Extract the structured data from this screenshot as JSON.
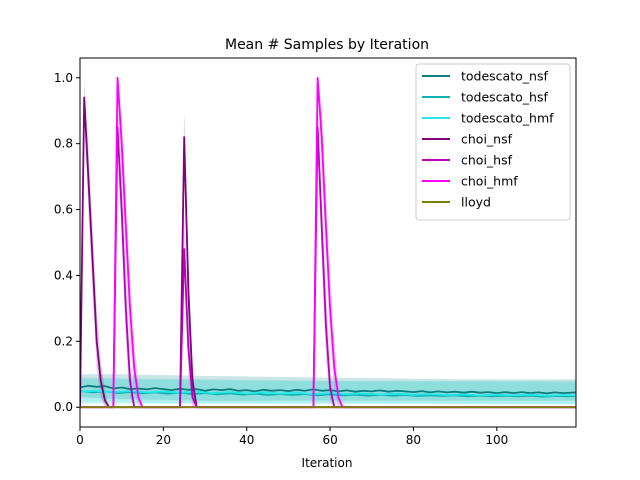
{
  "chart_data": {
    "type": "line",
    "title": "Mean # Samples by Iteration",
    "xlabel": "Iteration",
    "ylabel": "",
    "xlim": [
      0,
      119
    ],
    "ylim": [
      -0.06,
      1.06
    ],
    "xticks": [
      0,
      20,
      40,
      60,
      80,
      100
    ],
    "yticks": [
      0.0,
      0.2,
      0.4,
      0.6,
      0.8,
      1.0
    ],
    "xtick_labels": [
      "0",
      "20",
      "40",
      "60",
      "80",
      "100"
    ],
    "ytick_labels": [
      "0.0",
      "0.2",
      "0.4",
      "0.6",
      "0.8",
      "1.0"
    ],
    "grid": false,
    "legend_position": "top-right",
    "series": [
      {
        "name": "todescato_nsf",
        "color": "#0e7c7b",
        "band_color": "#2a9d9c",
        "band_opacity": 0.25,
        "points": [
          [
            0,
            0.06
          ],
          [
            2,
            0.065
          ],
          [
            4,
            0.062
          ],
          [
            6,
            0.064
          ],
          [
            8,
            0.057
          ],
          [
            10,
            0.06
          ],
          [
            12,
            0.055
          ],
          [
            14,
            0.057
          ],
          [
            16,
            0.054
          ],
          [
            18,
            0.058
          ],
          [
            20,
            0.055
          ],
          [
            22,
            0.052
          ],
          [
            24,
            0.056
          ],
          [
            26,
            0.053
          ],
          [
            28,
            0.055
          ],
          [
            30,
            0.05
          ],
          [
            32,
            0.054
          ],
          [
            34,
            0.052
          ],
          [
            36,
            0.055
          ],
          [
            38,
            0.05
          ],
          [
            40,
            0.052
          ],
          [
            42,
            0.048
          ],
          [
            44,
            0.053
          ],
          [
            46,
            0.05
          ],
          [
            48,
            0.052
          ],
          [
            50,
            0.049
          ],
          [
            52,
            0.053
          ],
          [
            54,
            0.05
          ],
          [
            56,
            0.054
          ],
          [
            58,
            0.05
          ],
          [
            60,
            0.052
          ],
          [
            62,
            0.048
          ],
          [
            64,
            0.051
          ],
          [
            66,
            0.047
          ],
          [
            68,
            0.05
          ],
          [
            70,
            0.048
          ],
          [
            72,
            0.051
          ],
          [
            74,
            0.047
          ],
          [
            76,
            0.05
          ],
          [
            78,
            0.048
          ],
          [
            80,
            0.046
          ],
          [
            82,
            0.049
          ],
          [
            84,
            0.045
          ],
          [
            86,
            0.048
          ],
          [
            88,
            0.045
          ],
          [
            90,
            0.047
          ],
          [
            92,
            0.044
          ],
          [
            94,
            0.047
          ],
          [
            96,
            0.044
          ],
          [
            98,
            0.046
          ],
          [
            100,
            0.043
          ],
          [
            102,
            0.046
          ],
          [
            104,
            0.043
          ],
          [
            106,
            0.046
          ],
          [
            108,
            0.043
          ],
          [
            110,
            0.045
          ],
          [
            112,
            0.042
          ],
          [
            114,
            0.045
          ],
          [
            116,
            0.043
          ],
          [
            119,
            0.045
          ]
        ],
        "band": [
          [
            0,
            0.03,
            0.1
          ],
          [
            10,
            0.025,
            0.1
          ],
          [
            30,
            0.02,
            0.095
          ],
          [
            60,
            0.02,
            0.09
          ],
          [
            90,
            0.02,
            0.085
          ],
          [
            119,
            0.02,
            0.085
          ]
        ]
      },
      {
        "name": "todescato_hsf",
        "color": "#12b0b0",
        "band_color": "#1fbcbc",
        "band_opacity": 0.2,
        "points": [
          [
            0,
            0.05
          ],
          [
            3,
            0.045
          ],
          [
            6,
            0.048
          ],
          [
            9,
            0.043
          ],
          [
            12,
            0.046
          ],
          [
            15,
            0.042
          ],
          [
            18,
            0.045
          ],
          [
            21,
            0.041
          ],
          [
            24,
            0.044
          ],
          [
            27,
            0.04
          ],
          [
            30,
            0.043
          ],
          [
            33,
            0.039
          ],
          [
            36,
            0.042
          ],
          [
            39,
            0.038
          ],
          [
            42,
            0.041
          ],
          [
            45,
            0.037
          ],
          [
            48,
            0.04
          ],
          [
            51,
            0.037
          ],
          [
            54,
            0.04
          ],
          [
            57,
            0.036
          ],
          [
            60,
            0.039
          ],
          [
            63,
            0.036
          ],
          [
            66,
            0.038
          ],
          [
            69,
            0.035
          ],
          [
            72,
            0.038
          ],
          [
            75,
            0.035
          ],
          [
            78,
            0.037
          ],
          [
            81,
            0.034
          ],
          [
            84,
            0.036
          ],
          [
            87,
            0.034
          ],
          [
            90,
            0.036
          ],
          [
            93,
            0.033
          ],
          [
            96,
            0.035
          ],
          [
            99,
            0.033
          ],
          [
            102,
            0.035
          ],
          [
            105,
            0.033
          ],
          [
            108,
            0.035
          ],
          [
            111,
            0.032
          ],
          [
            114,
            0.034
          ],
          [
            117,
            0.033
          ],
          [
            119,
            0.034
          ]
        ],
        "band": [
          [
            0,
            0.015,
            0.09
          ],
          [
            30,
            0.012,
            0.085
          ],
          [
            60,
            0.012,
            0.08
          ],
          [
            119,
            0.01,
            0.08
          ]
        ]
      },
      {
        "name": "todescato_hmf",
        "color": "#22e8e8",
        "band_color": "#2ee0e0",
        "band_opacity": 0.2,
        "points": [
          [
            0,
            0.048
          ],
          [
            4,
            0.05
          ],
          [
            8,
            0.046
          ],
          [
            12,
            0.049
          ],
          [
            16,
            0.045
          ],
          [
            20,
            0.048
          ],
          [
            24,
            0.044
          ],
          [
            28,
            0.047
          ],
          [
            32,
            0.043
          ],
          [
            36,
            0.046
          ],
          [
            40,
            0.042
          ],
          [
            44,
            0.045
          ],
          [
            48,
            0.041
          ],
          [
            52,
            0.044
          ],
          [
            56,
            0.04
          ],
          [
            60,
            0.043
          ],
          [
            64,
            0.04
          ],
          [
            68,
            0.042
          ],
          [
            72,
            0.039
          ],
          [
            76,
            0.041
          ],
          [
            80,
            0.038
          ],
          [
            84,
            0.04
          ],
          [
            88,
            0.037
          ],
          [
            92,
            0.039
          ],
          [
            96,
            0.036
          ],
          [
            100,
            0.038
          ],
          [
            104,
            0.036
          ],
          [
            108,
            0.038
          ],
          [
            112,
            0.035
          ],
          [
            116,
            0.037
          ],
          [
            119,
            0.036
          ]
        ],
        "band": [
          [
            0,
            0.01,
            0.085
          ],
          [
            40,
            0.01,
            0.08
          ],
          [
            119,
            0.008,
            0.075
          ]
        ]
      },
      {
        "name": "choi_nsf",
        "color": "#800080",
        "band_color": "#9c4f9c",
        "band_opacity": 0.3,
        "points": [
          [
            0,
            0.0
          ],
          [
            1,
            0.94
          ],
          [
            2,
            0.7
          ],
          [
            3,
            0.45
          ],
          [
            4,
            0.2
          ],
          [
            5,
            0.08
          ],
          [
            6,
            0.02
          ],
          [
            7,
            0.0
          ],
          [
            8,
            0.0
          ],
          [
            24,
            0.0
          ],
          [
            25,
            0.82
          ],
          [
            26,
            0.35
          ],
          [
            27,
            0.08
          ],
          [
            28,
            0.0
          ],
          [
            119,
            0.0
          ]
        ],
        "band": [
          [
            0,
            0.0,
            0.0
          ],
          [
            1,
            0.88,
            0.99
          ],
          [
            2,
            0.6,
            0.8
          ],
          [
            3,
            0.35,
            0.55
          ],
          [
            4,
            0.12,
            0.3
          ],
          [
            5,
            0.03,
            0.14
          ],
          [
            6,
            0.0,
            0.05
          ],
          [
            7,
            0.0,
            0.0
          ],
          [
            24,
            0.0,
            0.0
          ],
          [
            25,
            0.74,
            0.9
          ],
          [
            26,
            0.25,
            0.45
          ],
          [
            27,
            0.03,
            0.13
          ],
          [
            28,
            0.0,
            0.0
          ],
          [
            119,
            0.0,
            0.0
          ]
        ]
      },
      {
        "name": "choi_hsf",
        "color": "#bb00bb",
        "band_color": "#c45cc4",
        "band_opacity": 0.3,
        "points": [
          [
            0,
            0.0
          ],
          [
            8,
            0.0
          ],
          [
            9,
            0.85
          ],
          [
            10,
            0.6
          ],
          [
            11,
            0.3
          ],
          [
            12,
            0.08
          ],
          [
            13,
            0.0
          ],
          [
            24,
            0.0
          ],
          [
            25,
            0.48
          ],
          [
            26,
            0.18
          ],
          [
            27,
            0.03
          ],
          [
            28,
            0.0
          ],
          [
            56,
            0.0
          ],
          [
            57,
            0.85
          ],
          [
            58,
            0.55
          ],
          [
            59,
            0.25
          ],
          [
            60,
            0.06
          ],
          [
            61,
            0.0
          ],
          [
            119,
            0.0
          ]
        ],
        "band": [
          [
            0,
            0.0,
            0.0
          ],
          [
            8,
            0.0,
            0.0
          ],
          [
            9,
            0.78,
            0.92
          ],
          [
            10,
            0.5,
            0.7
          ],
          [
            11,
            0.2,
            0.4
          ],
          [
            12,
            0.03,
            0.14
          ],
          [
            13,
            0.0,
            0.0
          ],
          [
            24,
            0.0,
            0.0
          ],
          [
            25,
            0.38,
            0.58
          ],
          [
            26,
            0.1,
            0.26
          ],
          [
            27,
            0.0,
            0.07
          ],
          [
            28,
            0.0,
            0.0
          ],
          [
            56,
            0.0,
            0.0
          ],
          [
            57,
            0.78,
            0.92
          ],
          [
            58,
            0.45,
            0.65
          ],
          [
            59,
            0.15,
            0.35
          ],
          [
            60,
            0.02,
            0.11
          ],
          [
            61,
            0.0,
            0.0
          ],
          [
            119,
            0.0,
            0.0
          ]
        ]
      },
      {
        "name": "choi_hmf",
        "color": "#ff00ff",
        "band_color": "#e060e0",
        "band_opacity": 0.3,
        "points": [
          [
            0,
            0.0
          ],
          [
            8,
            0.0
          ],
          [
            9,
            1.0
          ],
          [
            10,
            0.8
          ],
          [
            11,
            0.55
          ],
          [
            12,
            0.3
          ],
          [
            13,
            0.12
          ],
          [
            14,
            0.03
          ],
          [
            15,
            0.0
          ],
          [
            56,
            0.0
          ],
          [
            57,
            1.0
          ],
          [
            58,
            0.82
          ],
          [
            59,
            0.55
          ],
          [
            60,
            0.3
          ],
          [
            61,
            0.12
          ],
          [
            62,
            0.03
          ],
          [
            63,
            0.0
          ],
          [
            119,
            0.0
          ]
        ],
        "band": [
          [
            0,
            0.0,
            0.0
          ],
          [
            8,
            0.0,
            0.0
          ],
          [
            9,
            0.98,
            1.0
          ],
          [
            10,
            0.7,
            0.9
          ],
          [
            11,
            0.45,
            0.65
          ],
          [
            12,
            0.2,
            0.4
          ],
          [
            13,
            0.05,
            0.2
          ],
          [
            14,
            0.0,
            0.07
          ],
          [
            15,
            0.0,
            0.0
          ],
          [
            56,
            0.0,
            0.0
          ],
          [
            57,
            0.98,
            1.0
          ],
          [
            58,
            0.72,
            0.92
          ],
          [
            59,
            0.45,
            0.65
          ],
          [
            60,
            0.2,
            0.4
          ],
          [
            61,
            0.05,
            0.2
          ],
          [
            62,
            0.0,
            0.07
          ],
          [
            63,
            0.0,
            0.0
          ],
          [
            119,
            0.0,
            0.0
          ]
        ]
      },
      {
        "name": "lloyd",
        "color": "#7f7f00",
        "band_color": "#d98080",
        "band_opacity": 0.0,
        "points": [
          [
            0,
            0.0
          ],
          [
            119,
            0.0
          ]
        ],
        "band": []
      }
    ]
  }
}
